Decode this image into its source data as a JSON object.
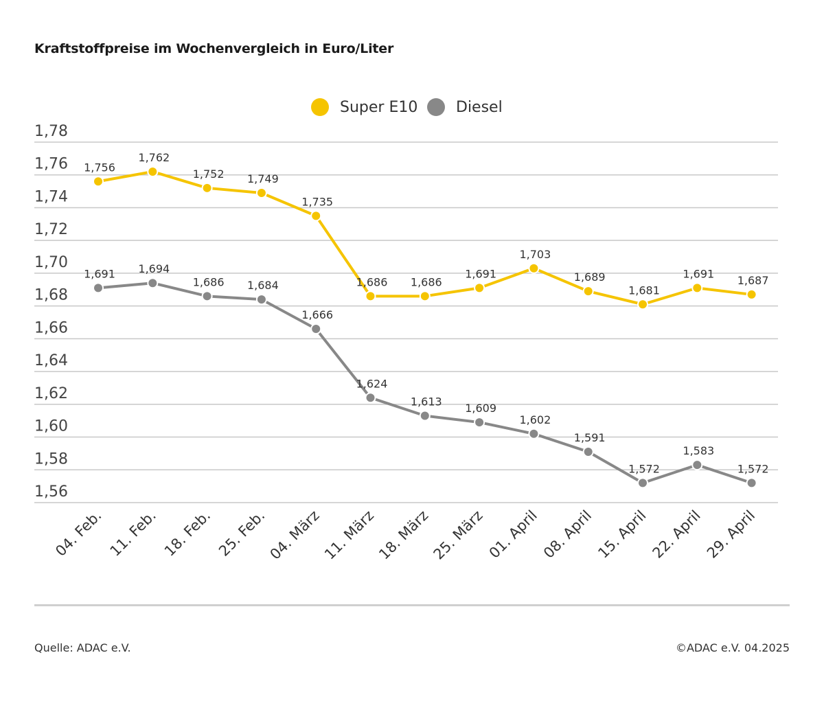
{
  "header": {
    "title": "Kraftstoffpreise im Wochenvergleich in Euro/Liter"
  },
  "footer": {
    "source": "Quelle: ADAC e.V.",
    "copyright": "©ADAC e.V. 04.2025"
  },
  "colors": {
    "super": "#f5c400",
    "diesel": "#888888",
    "grid": "#c8c8c8"
  },
  "chart_data": {
    "type": "line",
    "title": "Kraftstoffpreise im Wochenvergleich in Euro/Liter",
    "xlabel": "",
    "ylabel": "",
    "ylim": [
      1.56,
      1.78
    ],
    "grid": true,
    "legend_position": "top-center",
    "categories": [
      "04. Feb.",
      "11. Feb.",
      "18. Feb.",
      "25. Feb.",
      "04. März",
      "11. März",
      "18. März",
      "25. März",
      "01. April",
      "08. April",
      "15. April",
      "22. April",
      "29. April"
    ],
    "y_ticks": [
      "1,56",
      "1,58",
      "1,60",
      "1,62",
      "1,64",
      "1,66",
      "1,68",
      "1,70",
      "1,72",
      "1,74",
      "1,76",
      "1,78"
    ],
    "series": [
      {
        "name": "Super E10",
        "values": [
          1.756,
          1.762,
          1.752,
          1.749,
          1.735,
          1.686,
          1.686,
          1.691,
          1.703,
          1.689,
          1.681,
          1.691,
          1.687
        ],
        "labels": [
          "1,756",
          "1,762",
          "1,752",
          "1,749",
          "1,735",
          "1,686",
          "1,686",
          "1,691",
          "1,703",
          "1,689",
          "1,681",
          "1,691",
          "1,687"
        ]
      },
      {
        "name": "Diesel",
        "values": [
          1.691,
          1.694,
          1.686,
          1.684,
          1.666,
          1.624,
          1.613,
          1.609,
          1.602,
          1.591,
          1.572,
          1.583,
          1.572
        ],
        "labels": [
          "1,691",
          "1,694",
          "1,686",
          "1,684",
          "1,666",
          "1,624",
          "1,613",
          "1,609",
          "1,602",
          "1,591",
          "1,572",
          "1,583",
          "1,572"
        ]
      }
    ]
  }
}
